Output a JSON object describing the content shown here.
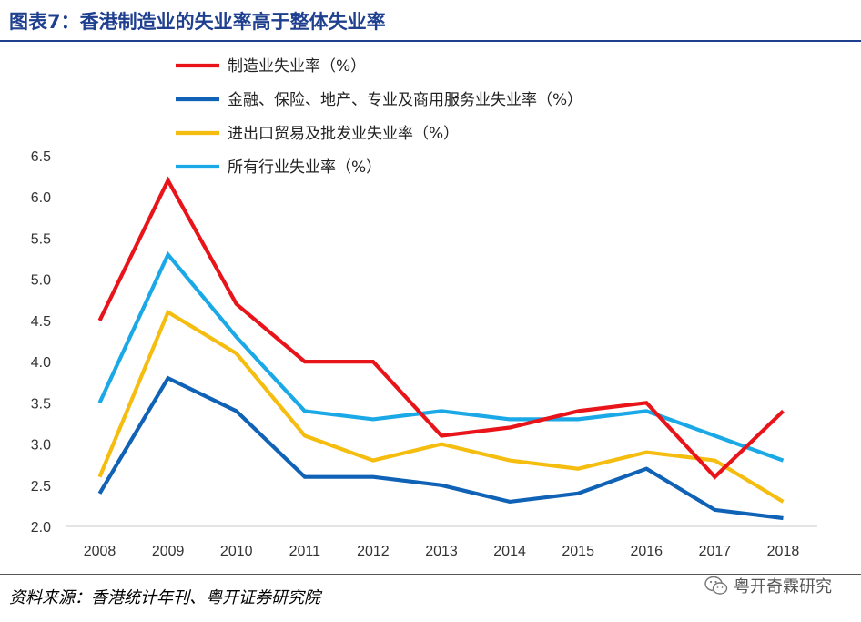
{
  "header": {
    "title": "图表7：香港制造业的失业率高于整体失业率"
  },
  "footer": {
    "source": "资料来源：香港统计年刊、粤开证券研究院",
    "watermark": "粤开奇霖研究",
    "watermark_icon": "wechat-icon"
  },
  "chart_data": {
    "type": "line",
    "title": "",
    "xlabel": "",
    "ylabel": "",
    "x": [
      "2008",
      "2009",
      "2010",
      "2011",
      "2012",
      "2013",
      "2014",
      "2015",
      "2016",
      "2017",
      "2018"
    ],
    "ylim": [
      2.0,
      6.5
    ],
    "yticks": [
      "2.0",
      "2.5",
      "3.0",
      "3.5",
      "4.0",
      "4.5",
      "5.0",
      "5.5",
      "6.0",
      "6.5"
    ],
    "grid": false,
    "legend_position": "top-left",
    "series": [
      {
        "name": "制造业失业率（%）",
        "color": "#e8141a",
        "values": [
          4.5,
          6.2,
          4.7,
          4.0,
          4.0,
          3.1,
          3.2,
          3.4,
          3.5,
          2.6,
          3.4
        ]
      },
      {
        "name": "金融、保险、地产、专业及商用服务业失业率（%）",
        "color": "#0f62b5",
        "values": [
          2.4,
          3.8,
          3.4,
          2.6,
          2.6,
          2.5,
          2.3,
          2.4,
          2.7,
          2.2,
          2.1
        ]
      },
      {
        "name": "进出口贸易及批发业失业率（%）",
        "color": "#f5bd0f",
        "values": [
          2.6,
          4.6,
          4.1,
          3.1,
          2.8,
          3.0,
          2.8,
          2.7,
          2.9,
          2.8,
          2.3
        ]
      },
      {
        "name": "所有行业失业率（%）",
        "color": "#1aa9e6",
        "values": [
          3.5,
          5.3,
          4.3,
          3.4,
          3.3,
          3.4,
          3.3,
          3.3,
          3.4,
          3.1,
          2.8
        ]
      }
    ]
  }
}
